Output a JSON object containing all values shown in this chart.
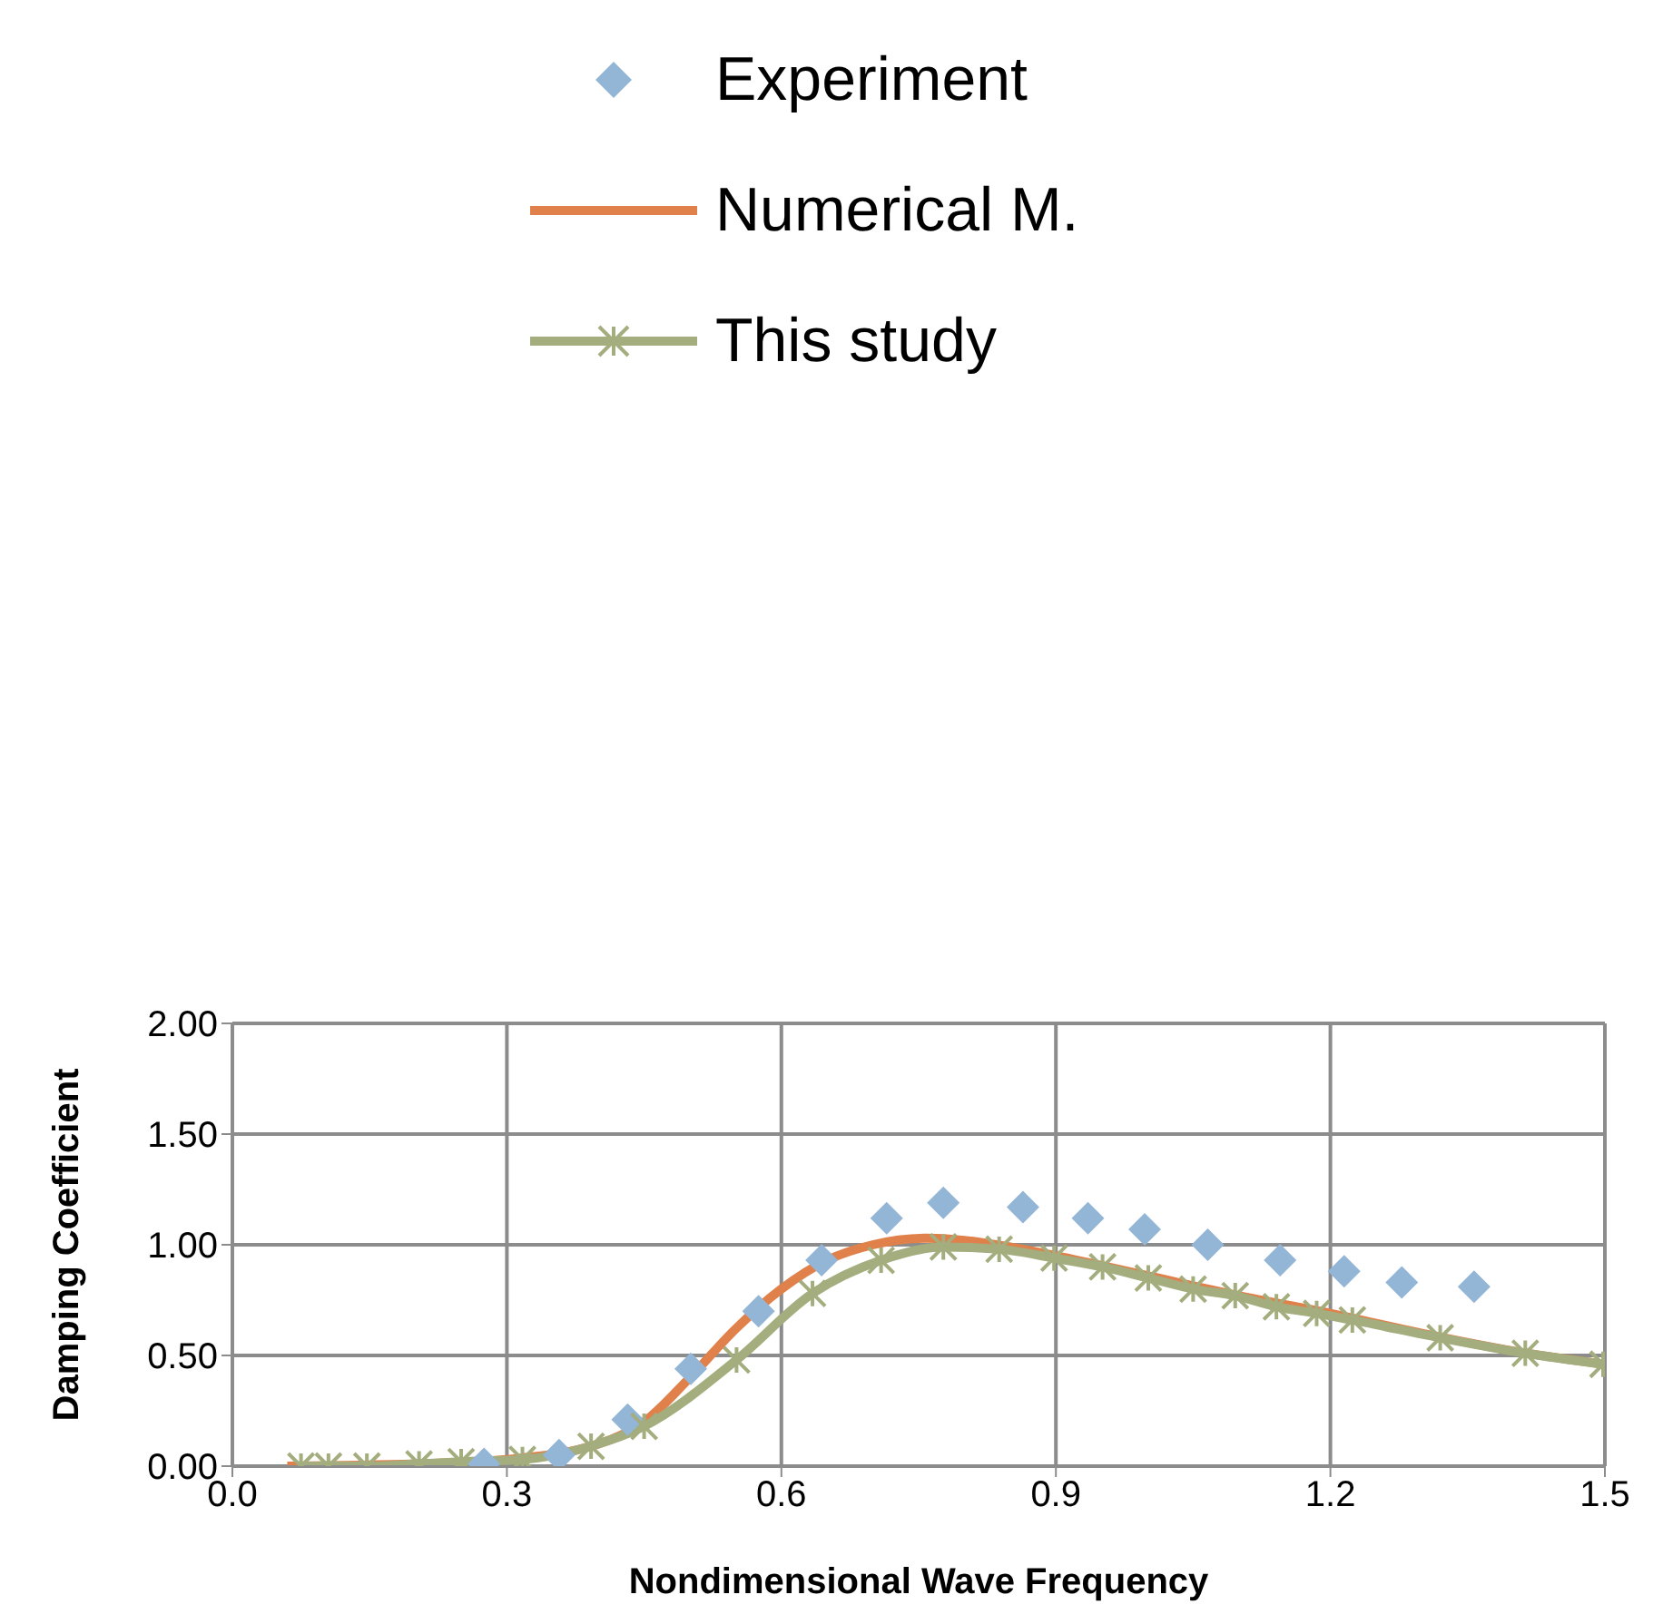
{
  "chart_data": {
    "type": "line",
    "xlabel": "Nondimensional Wave Frequency",
    "ylabel": "Damping Coefficient",
    "xlim": [
      0,
      1.5
    ],
    "xticks": [
      {
        "value": 0,
        "label": "0.0"
      },
      {
        "value": 0.3,
        "label": "0.3"
      },
      {
        "value": 0.6,
        "label": "0.6"
      },
      {
        "value": 0.9,
        "label": "0.9"
      },
      {
        "value": 1.2,
        "label": "1.2"
      },
      {
        "value": 1.5,
        "label": "1.5"
      }
    ],
    "ylim": [
      0,
      2
    ],
    "yticks": [
      {
        "value": 0,
        "label": "0.00"
      },
      {
        "value": 0.5,
        "label": "0.50"
      },
      {
        "value": 1,
        "label": "1.00"
      },
      {
        "value": 1.5,
        "label": "1.50"
      },
      {
        "value": 2,
        "label": "2.00"
      }
    ],
    "grid": true,
    "legend": "top",
    "series": [
      {
        "name": "Experiment",
        "type": "scatter",
        "marker": "diamond",
        "color": "#93b5d6",
        "x": [
          0.275,
          0.357,
          0.432,
          0.501,
          0.575,
          0.644,
          0.715,
          0.777,
          0.864,
          0.935,
          0.997,
          1.066,
          1.145,
          1.215,
          1.278,
          1.357
        ],
        "values": [
          0.01,
          0.05,
          0.21,
          0.44,
          0.7,
          0.93,
          1.12,
          1.19,
          1.17,
          1.12,
          1.07,
          1.0,
          0.93,
          0.88,
          0.83,
          0.81
        ]
      },
      {
        "name": "Numerical M.",
        "marker": "none",
        "color": "#e0804a",
        "x": [
          0.06,
          0.2,
          0.3,
          0.4,
          0.45,
          0.5,
          0.55,
          0.6,
          0.65,
          0.7,
          0.76,
          0.8,
          0.85,
          0.9,
          1.0,
          1.1,
          1.2,
          1.3,
          1.4,
          1.5
        ],
        "values": [
          0,
          0.01,
          0.03,
          0.1,
          0.2,
          0.4,
          0.62,
          0.8,
          0.93,
          1.0,
          1.03,
          1.02,
          0.99,
          0.95,
          0.86,
          0.77,
          0.69,
          0.6,
          0.52,
          0.46
        ]
      },
      {
        "name": "This study",
        "marker": "cross",
        "color": "#a3ad7e",
        "x": [
          0.075,
          0.105,
          0.147,
          0.204,
          0.25,
          0.317,
          0.392,
          0.45,
          0.551,
          0.634,
          0.709,
          0.777,
          0.838,
          0.898,
          0.951,
          1.001,
          1.05,
          1.096,
          1.141,
          1.185,
          1.224,
          1.32,
          1.413,
          1.498
        ],
        "values": [
          0,
          0,
          0,
          0.01,
          0.02,
          0.03,
          0.09,
          0.18,
          0.48,
          0.78,
          0.93,
          0.99,
          0.98,
          0.94,
          0.9,
          0.85,
          0.8,
          0.77,
          0.72,
          0.69,
          0.66,
          0.58,
          0.51,
          0.46
        ]
      }
    ]
  }
}
